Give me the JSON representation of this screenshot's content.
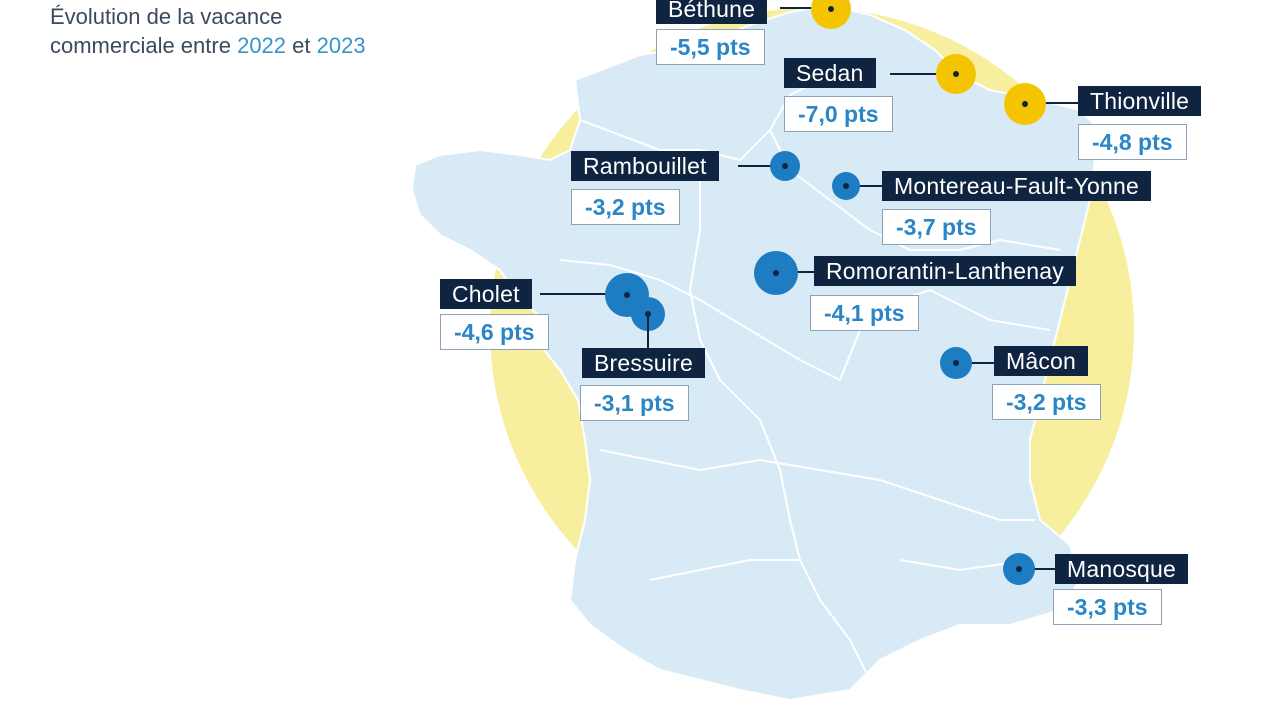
{
  "title": {
    "line1": "Évolution de la vacance",
    "line2_prefix": "commerciale entre ",
    "year1": "2022",
    "conj": " et ",
    "year2": "2023"
  },
  "legend_colors": {
    "decrease_strong": "#f5c400",
    "decrease": "#1e7cc2",
    "label_bg": "#0f2440",
    "value_text": "#2a86c6"
  },
  "cities": [
    {
      "name": "Béthune",
      "value": "-5,5 pts",
      "color": "yellow"
    },
    {
      "name": "Sedan",
      "value": "-7,0 pts",
      "color": "yellow"
    },
    {
      "name": "Thionville",
      "value": "-4,8 pts",
      "color": "yellow"
    },
    {
      "name": "Rambouillet",
      "value": "-3,2 pts",
      "color": "blue"
    },
    {
      "name": "Montereau-Fault-Yonne",
      "value": "-3,7 pts",
      "color": "blue"
    },
    {
      "name": "Romorantin-Lanthenay",
      "value": "-4,1 pts",
      "color": "blue"
    },
    {
      "name": "Cholet",
      "value": "-4,6 pts",
      "color": "blue"
    },
    {
      "name": "Bressuire",
      "value": "-3,1 pts",
      "color": "blue"
    },
    {
      "name": "Mâcon",
      "value": "-3,2 pts",
      "color": "blue"
    },
    {
      "name": "Manosque",
      "value": "-3,3 pts",
      "color": "blue"
    }
  ]
}
